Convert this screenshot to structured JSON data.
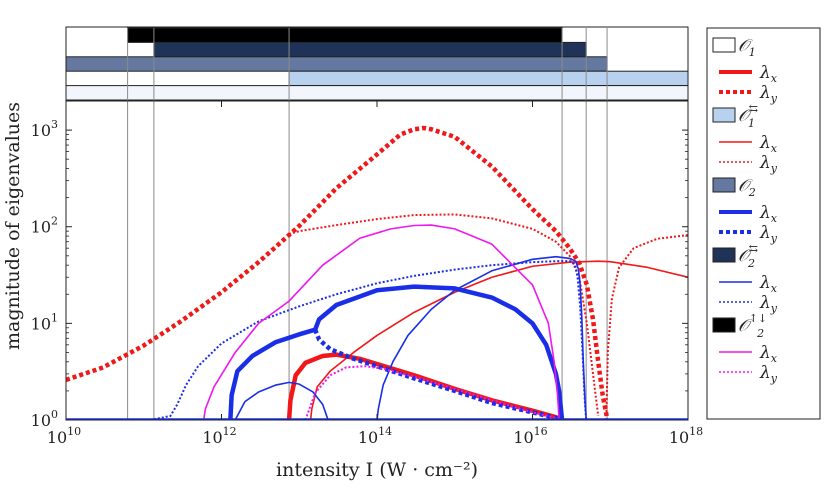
{
  "chart_data": {
    "type": "line",
    "xlabel": "intensity I (W · cm⁻²)",
    "ylabel": "magnitude of eigenvalues",
    "x_scale": "log",
    "y_scale": "log",
    "xlim": [
      10000000000.0,
      1e+18
    ],
    "ylim": [
      1,
      2000
    ],
    "x_ticks": [
      {
        "value": 10000000000.0,
        "base": "10",
        "exp": "10"
      },
      {
        "value": 1000000000000.0,
        "base": "10",
        "exp": "12"
      },
      {
        "value": 100000000000000.0,
        "base": "10",
        "exp": "14"
      },
      {
        "value": 1e+16,
        "base": "10",
        "exp": "16"
      },
      {
        "value": 1e+18,
        "base": "10",
        "exp": "18"
      }
    ],
    "y_ticks": [
      {
        "value": 1,
        "base": "10",
        "exp": "0"
      },
      {
        "value": 10,
        "base": "10",
        "exp": "1"
      },
      {
        "value": 100,
        "base": "10",
        "exp": "2"
      },
      {
        "value": 1000,
        "base": "10",
        "exp": "3"
      }
    ],
    "vertical_lines": [
      62000000000.0,
      135000000000.0,
      7400000000000.0,
      2.4e+16,
      4.9e+16,
      9.1e+16
    ],
    "regions": [
      {
        "level": 1,
        "name": "O2↑↓",
        "start": 62000000000.0,
        "end": 2.4e+16,
        "color": "#000000"
      },
      {
        "level": 2,
        "name": "O2⇆",
        "start": 135000000000.0,
        "end": 4.9e+16,
        "color": "#1f3257"
      },
      {
        "level": 3,
        "name": "O2",
        "start": 10000000000.0,
        "end": 9.1e+16,
        "color": "#6478a0"
      },
      {
        "level": 4,
        "name": "O1⇆",
        "start": 7400000000000.0,
        "end": 1e+18,
        "color": "#b8d1ef"
      },
      {
        "level": 5,
        "name": "O1",
        "start": 10000000000.0,
        "end": 1e+18,
        "color": "#f2f6fc"
      }
    ],
    "legend": {
      "placement": "right",
      "groups": [
        {
          "name": "𝒪",
          "sub": "1",
          "sup": "",
          "color": "#ffffff",
          "entries": [
            {
              "label": "λ",
              "sub": "x",
              "color": "#f01818",
              "style": "solid",
              "width": 4
            },
            {
              "label": "λ",
              "sub": "y",
              "color": "#f01818",
              "style": "dotted",
              "width": 4
            }
          ]
        },
        {
          "name": "𝒪",
          "sub": "1",
          "sup": "⇆",
          "color": "#b8d1ef",
          "entries": [
            {
              "label": "λ",
              "sub": "x",
              "color": "#f01818",
              "style": "solid",
              "width": 1.6
            },
            {
              "label": "λ",
              "sub": "y",
              "color": "#f01818",
              "style": "dotted",
              "width": 1.6
            }
          ]
        },
        {
          "name": "𝒪",
          "sub": "2",
          "sup": "",
          "color": "#6478a0",
          "entries": [
            {
              "label": "λ",
              "sub": "x",
              "color": "#1a2ee8",
              "style": "solid",
              "width": 4
            },
            {
              "label": "λ",
              "sub": "y",
              "color": "#1a2ee8",
              "style": "dotted",
              "width": 4
            }
          ]
        },
        {
          "name": "𝒪",
          "sub": "2",
          "sup": "⇆",
          "color": "#1f3257",
          "entries": [
            {
              "label": "λ",
              "sub": "x",
              "color": "#1a2ee8",
              "style": "solid",
              "width": 1.6
            },
            {
              "label": "λ",
              "sub": "y",
              "color": "#1a2ee8",
              "style": "dotted",
              "width": 1.6
            }
          ]
        },
        {
          "name": "𝒪",
          "sub": "2",
          "sup": "↑↓",
          "color": "#000000",
          "entries": [
            {
              "label": "λ",
              "sub": "x",
              "color": "#ee18ee",
              "style": "solid",
              "width": 1.6
            },
            {
              "label": "λ",
              "sub": "y",
              "color": "#ee18ee",
              "style": "dotted",
              "width": 1.6
            }
          ]
        }
      ]
    },
    "series": [
      {
        "name": "O1 λy",
        "color": "#f01818",
        "style": "dotted",
        "width": 4.5,
        "points": [
          [
            10000000000.0,
            2.6
          ],
          [
            30000000000.0,
            3.5
          ],
          [
            100000000000.0,
            5.9
          ],
          [
            300000000000.0,
            10.5
          ],
          [
            1000000000000.0,
            21
          ],
          [
            3000000000000.0,
            43
          ],
          [
            10000000000000.0,
            102
          ],
          [
            30000000000000.0,
            250
          ],
          [
            100000000000000.0,
            560
          ],
          [
            200000000000000.0,
            900
          ],
          [
            300000000000000.0,
            1020
          ],
          [
            400000000000000.0,
            1050
          ],
          [
            500000000000000.0,
            1020
          ],
          [
            1000000000000000.0,
            850
          ],
          [
            3000000000000000.0,
            420
          ],
          [
            1e+16,
            152
          ],
          [
            2e+16,
            90
          ],
          [
            3e+16,
            60
          ],
          [
            4e+16,
            42
          ],
          [
            5e+16,
            25
          ],
          [
            6e+16,
            11
          ],
          [
            7e+16,
            4
          ],
          [
            8e+16,
            1.8
          ],
          [
            9e+16,
            1.1
          ]
        ]
      },
      {
        "name": "O1 λx",
        "color": "#f01818",
        "style": "solid",
        "width": 4.5,
        "points": [
          [
            7400000000000.0,
            1
          ],
          [
            7700000000000.0,
            1.6
          ],
          [
            9000000000000.0,
            2.9
          ],
          [
            12000000000000.0,
            3.9
          ],
          [
            20000000000000.0,
            4.6
          ],
          [
            30000000000000.0,
            4.75
          ],
          [
            60000000000000.0,
            4.3
          ],
          [
            100000000000000.0,
            3.8
          ],
          [
            300000000000000.0,
            2.9
          ],
          [
            1000000000000000.0,
            2.1
          ],
          [
            3000000000000000.0,
            1.6
          ],
          [
            1e+16,
            1.25
          ],
          [
            2e+16,
            1.07
          ],
          [
            2.4e+16,
            1
          ]
        ]
      },
      {
        "name": "O1⇆ λx",
        "color": "#f01818",
        "style": "solid",
        "width": 1.6,
        "points": [
          [
            14000000000000.0,
            1
          ],
          [
            14500000000000.0,
            1.3
          ],
          [
            17000000000000.0,
            2.2
          ],
          [
            25000000000000.0,
            3.2
          ],
          [
            50000000000000.0,
            5
          ],
          [
            100000000000000.0,
            7.5
          ],
          [
            300000000000000.0,
            13
          ],
          [
            1000000000000000.0,
            21
          ],
          [
            3000000000000000.0,
            30
          ],
          [
            1e+16,
            39
          ],
          [
            3e+16,
            43
          ],
          [
            7e+16,
            44
          ],
          [
            1e+17,
            43.5
          ],
          [
            3e+17,
            38
          ],
          [
            1e+18,
            30
          ]
        ]
      },
      {
        "name": "O1⇆ λy",
        "color": "#f01818",
        "style": "dotted",
        "width": 2,
        "points": [
          [
            7400000000000.0,
            84
          ],
          [
            10000000000000.0,
            90
          ],
          [
            30000000000000.0,
            104
          ],
          [
            100000000000000.0,
            120
          ],
          [
            300000000000000.0,
            132
          ],
          [
            1000000000000000.0,
            134
          ],
          [
            3000000000000000.0,
            122
          ],
          [
            1e+16,
            95
          ],
          [
            2e+16,
            70
          ],
          [
            3e+16,
            50
          ],
          [
            4e+16,
            30
          ],
          [
            5e+16,
            10
          ],
          [
            6e+16,
            3
          ],
          [
            7e+16,
            1.1
          ]
        ]
      },
      {
        "name": "O1⇆ λy tail",
        "color": "#f01818",
        "style": "dotted",
        "width": 2,
        "points": [
          [
            8.9e+16,
            1
          ],
          [
            9.3e+16,
            5
          ],
          [
            1.05e+17,
            18
          ],
          [
            1.3e+17,
            38
          ],
          [
            2e+17,
            60
          ],
          [
            4e+17,
            75
          ],
          [
            1e+18,
            82
          ]
        ]
      },
      {
        "name": "O2 λx lower",
        "color": "#1a2ee8",
        "style": "solid",
        "width": 4.5,
        "points": [
          [
            1300000000000.0,
            1
          ],
          [
            1350000000000.0,
            1.8
          ],
          [
            1600000000000.0,
            3.2
          ],
          [
            2500000000000.0,
            4.6
          ],
          [
            5000000000000.0,
            6.4
          ],
          [
            10000000000000.0,
            7.7
          ],
          [
            16000000000000.0,
            8.6
          ]
        ]
      },
      {
        "name": "O2 λx upper",
        "color": "#1a2ee8",
        "style": "solid",
        "width": 4.5,
        "points": [
          [
            16000000000000.0,
            8.6
          ],
          [
            18000000000000.0,
            11
          ],
          [
            30000000000000.0,
            15.5
          ],
          [
            100000000000000.0,
            22
          ],
          [
            300000000000000.0,
            24
          ],
          [
            1000000000000000.0,
            23
          ],
          [
            3000000000000000.0,
            18.5
          ],
          [
            6000000000000000.0,
            14
          ],
          [
            1e+16,
            10
          ],
          [
            1.5e+16,
            6
          ],
          [
            2e+16,
            3
          ],
          [
            2.2e+16,
            2
          ],
          [
            2.4e+16,
            1
          ]
        ]
      },
      {
        "name": "O2 λy",
        "color": "#1a2ee8",
        "style": "dotted",
        "width": 4.5,
        "points": [
          [
            16000000000000.0,
            8.6
          ],
          [
            18000000000000.0,
            6.8
          ],
          [
            25000000000000.0,
            5.4
          ],
          [
            50000000000000.0,
            4.3
          ],
          [
            100000000000000.0,
            3.6
          ],
          [
            300000000000000.0,
            2.7
          ],
          [
            1000000000000000.0,
            2
          ],
          [
            3000000000000000.0,
            1.5
          ],
          [
            1e+16,
            1.2
          ],
          [
            2e+16,
            1.05
          ],
          [
            2.4e+16,
            1
          ]
        ]
      },
      {
        "name": "O2⇆ λx small",
        "color": "#1a2ee8",
        "style": "solid",
        "width": 1.6,
        "points": [
          [
            1500000000000.0,
            1
          ],
          [
            2000000000000.0,
            1.55
          ],
          [
            3000000000000.0,
            1.95
          ],
          [
            5000000000000.0,
            2.3
          ],
          [
            7400000000000.0,
            2.45
          ],
          [
            10000000000000.0,
            2.35
          ],
          [
            15000000000000.0,
            1.95
          ],
          [
            20000000000000.0,
            1.45
          ],
          [
            23000000000000.0,
            1.05
          ],
          [
            23500000000000.0,
            1
          ]
        ]
      },
      {
        "name": "O2⇆ λx big",
        "color": "#1a2ee8",
        "style": "solid",
        "width": 1.6,
        "points": [
          [
            10000000000.0,
            1
          ],
          [
            100000000000000.0,
            1
          ],
          [
            104000000000000.0,
            1.3
          ],
          [
            120000000000000.0,
            2.3
          ],
          [
            160000000000000.0,
            4
          ],
          [
            250000000000000.0,
            7.5
          ],
          [
            500000000000000.0,
            14
          ],
          [
            1000000000000000.0,
            22
          ],
          [
            3000000000000000.0,
            35
          ],
          [
            1e+16,
            46
          ],
          [
            2e+16,
            49
          ],
          [
            3e+16,
            47
          ],
          [
            3.6e+16,
            44
          ],
          [
            3.9e+16,
            36
          ],
          [
            4.1e+16,
            25
          ],
          [
            4.3e+16,
            12
          ],
          [
            4.5e+16,
            4
          ],
          [
            4.7e+16,
            1.8
          ],
          [
            4.9e+16,
            1
          ]
        ]
      },
      {
        "name": "O2⇆ λy",
        "color": "#1a2ee8",
        "style": "dotted",
        "width": 2,
        "points": [
          [
            10000000000.0,
            1
          ],
          [
            120000000000.0,
            1
          ],
          [
            220000000000.0,
            1.1
          ],
          [
            270000000000.0,
            1.45
          ],
          [
            350000000000.0,
            2.3
          ],
          [
            500000000000.0,
            3.6
          ],
          [
            1000000000000.0,
            6.2
          ],
          [
            3000000000000.0,
            10.5
          ],
          [
            10000000000000.0,
            15
          ],
          [
            30000000000000.0,
            20
          ],
          [
            100000000000000.0,
            26
          ],
          [
            300000000000000.0,
            31
          ],
          [
            1000000000000000.0,
            36
          ],
          [
            3000000000000000.0,
            40
          ],
          [
            1e+16,
            43
          ],
          [
            2e+16,
            44
          ],
          [
            3e+16,
            44
          ],
          [
            3.5e+16,
            41
          ],
          [
            3.8e+16,
            30
          ],
          [
            4.1e+16,
            15
          ],
          [
            4.4e+16,
            5
          ],
          [
            4.7e+16,
            1.6
          ],
          [
            4.9e+16,
            1
          ]
        ]
      },
      {
        "name": "O2↑↓ λx",
        "color": "#ee18ee",
        "style": "solid",
        "width": 1.6,
        "points": [
          [
            590000000000.0,
            1
          ],
          [
            620000000000.0,
            1.3
          ],
          [
            800000000000.0,
            2.2
          ],
          [
            1500000000000.0,
            5
          ],
          [
            3000000000000.0,
            10
          ],
          [
            7400000000000.0,
            17
          ],
          [
            20000000000000.0,
            40
          ],
          [
            60000000000000.0,
            76
          ],
          [
            150000000000000.0,
            95
          ],
          [
            300000000000000.0,
            103
          ],
          [
            500000000000000.0,
            104
          ],
          [
            1000000000000000.0,
            95
          ],
          [
            3000000000000000.0,
            66
          ],
          [
            1e+16,
            25
          ],
          [
            1.6e+16,
            10
          ],
          [
            1.9e+16,
            4
          ],
          [
            2.1e+16,
            1.8
          ],
          [
            2.2e+16,
            1
          ]
        ]
      },
      {
        "name": "O2↑↓ λy",
        "color": "#ee18ee",
        "style": "dotted",
        "width": 2,
        "points": [
          [
            12000000000000.0,
            1
          ],
          [
            16000000000000.0,
            1.9
          ],
          [
            25000000000000.0,
            2.9
          ],
          [
            40000000000000.0,
            3.5
          ],
          [
            70000000000000.0,
            3.6
          ],
          [
            120000000000000.0,
            3.4
          ],
          [
            300000000000000.0,
            2.8
          ],
          [
            1000000000000000.0,
            2.1
          ],
          [
            3000000000000000.0,
            1.6
          ],
          [
            1e+16,
            1.2
          ],
          [
            2e+16,
            1.05
          ],
          [
            2.2e+16,
            1
          ]
        ]
      },
      {
        "name": "baseline",
        "color": "#1a2ee8",
        "style": "solid",
        "width": 3.5,
        "points": [
          [
            10000000000.0,
            1
          ],
          [
            1e+18,
            1
          ]
        ]
      }
    ]
  }
}
